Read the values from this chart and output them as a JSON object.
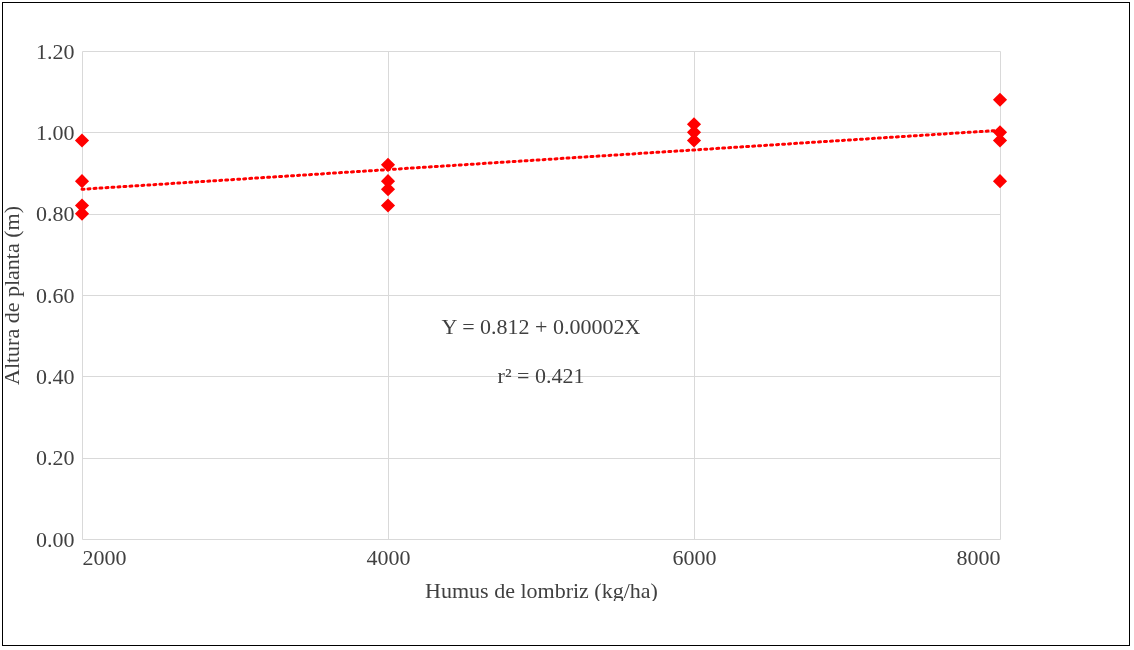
{
  "chart_data": {
    "type": "scatter",
    "xlabel": "Humus  de lombriz  (kg/ha)",
    "ylabel": "Altura  de planta  (m)",
    "xlim": [
      2000,
      8000
    ],
    "xticks": [
      2000,
      4000,
      6000,
      8000
    ],
    "ylim": [
      0,
      1.2
    ],
    "yticks": [
      {
        "value": 0,
        "label": "0.00"
      },
      {
        "value": 0.2,
        "label": "0.20"
      },
      {
        "value": 0.4,
        "label": "0.40"
      },
      {
        "value": 0.6,
        "label": "0.60"
      },
      {
        "value": 0.8,
        "label": "0.80"
      },
      {
        "value": 1,
        "label": "1.00"
      },
      {
        "value": 1.2,
        "label": "1.20"
      }
    ],
    "grid": true,
    "marker": "diamond",
    "series": [
      {
        "color": "#ff0000",
        "x": [
          2000,
          2000,
          2000,
          2000,
          4000,
          4000,
          4000,
          4000,
          6000,
          6000,
          6000,
          8000,
          8000,
          8000,
          8000
        ],
        "values": [
          0.98,
          0.88,
          0.82,
          0.8,
          0.92,
          0.88,
          0.86,
          0.82,
          1.02,
          1.0,
          0.98,
          1.08,
          1.0,
          0.98,
          0.88
        ]
      },
      {
        "type": "line",
        "color": "#ff0000",
        "line_style": "dotted",
        "marker": "none",
        "x": [
          2000,
          8000
        ],
        "values": [
          0.86,
          1.005
        ]
      }
    ],
    "annotations": [
      "Y = 0.812 + 0.00002X",
      "r² = 0.421"
    ]
  }
}
